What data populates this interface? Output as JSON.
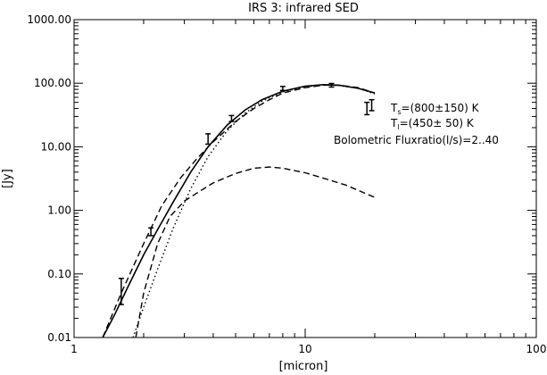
{
  "chart_data": {
    "type": "line",
    "title": "IRS 3: infrared SED",
    "xlabel": "[micron]",
    "ylabel": "[Jy]",
    "xscale": "log",
    "yscale": "log",
    "xlim": [
      1,
      100
    ],
    "ylim": [
      0.01,
      1000
    ],
    "grid": false,
    "x_ticks": [
      {
        "value": 1,
        "label": "1"
      },
      {
        "value": 10,
        "label": "10"
      },
      {
        "value": 100,
        "label": "100"
      }
    ],
    "y_ticks": [
      {
        "value": 0.01,
        "label": "0.01"
      },
      {
        "value": 0.1,
        "label": "0.10"
      },
      {
        "value": 1,
        "label": "1.00"
      },
      {
        "value": 10,
        "label": "10.00"
      },
      {
        "value": 100,
        "label": "100.00"
      },
      {
        "value": 1000,
        "label": "1000.00"
      }
    ],
    "annotations": [
      {
        "text": "T",
        "sub": "s",
        "rest": "=(800±150) K"
      },
      {
        "text": "T",
        "sub": "l",
        "rest": "=(450± 50) K"
      },
      {
        "text": "Bolometric Fluxratio(l/s)=2..40",
        "sub": "",
        "rest": ""
      }
    ],
    "series": [
      {
        "style": "solid",
        "x": [
          1.33,
          1.5,
          1.7,
          2.0,
          2.3,
          2.7,
          3.2,
          3.8,
          4.6,
          5.5,
          6.5,
          8,
          10,
          12,
          14,
          17,
          20
        ],
        "y": [
          0.01,
          0.023,
          0.06,
          0.2,
          0.5,
          1.4,
          4.0,
          10.0,
          22.0,
          38.0,
          55.0,
          75.0,
          90.0,
          95.0,
          93.0,
          83.0,
          70.0
        ]
      },
      {
        "style": "dotted",
        "x": [
          1.8,
          2.0,
          2.3,
          2.7,
          3.2,
          3.8,
          4.6,
          5.5,
          6.5,
          8,
          10,
          12,
          14,
          17,
          20
        ],
        "y": [
          0.01,
          0.03,
          0.12,
          0.55,
          2.2,
          7.0,
          18.0,
          34.0,
          52.0,
          73.0,
          88.0,
          94.0,
          92.0,
          83.0,
          68.0
        ]
      },
      {
        "style": "dashed",
        "x": [
          1.33,
          1.6,
          2.0,
          2.4,
          2.9,
          3.4,
          4.0,
          5.0,
          6.0,
          7.0,
          8.0,
          10,
          12,
          14,
          17,
          20
        ],
        "y": [
          0.01,
          0.05,
          0.3,
          1.2,
          3.3,
          6.5,
          12.0,
          25.0,
          40.0,
          55.0,
          70.0,
          85.0,
          93.0,
          93.0,
          85.0,
          70.0
        ]
      },
      {
        "style": "dashed",
        "x": [
          1.85,
          2.0,
          2.3,
          2.6,
          3.0,
          3.5,
          4.0,
          5.0,
          6.0,
          7.0,
          8.0,
          10,
          12,
          15,
          20
        ],
        "y": [
          0.01,
          0.05,
          0.3,
          0.8,
          1.4,
          2.0,
          2.7,
          3.8,
          4.6,
          4.8,
          4.6,
          3.9,
          3.2,
          2.5,
          1.6
        ]
      }
    ],
    "error_bars": [
      {
        "x": 1.6,
        "y": 0.055,
        "low": 0.033,
        "high": 0.085
      },
      {
        "x": 2.15,
        "y": 0.46,
        "low": 0.4,
        "high": 0.53
      },
      {
        "x": 3.8,
        "y": 13.5,
        "low": 11.0,
        "high": 16.0
      },
      {
        "x": 4.8,
        "y": 28.0,
        "low": 25.0,
        "high": 31.0
      },
      {
        "x": 8.0,
        "y": 83.0,
        "low": 77.0,
        "high": 89.0
      },
      {
        "x": 13.0,
        "y": 93.0,
        "low": 87.0,
        "high": 99.0
      },
      {
        "x": 18.5,
        "y": 40.0,
        "low": 32.0,
        "high": 50.0
      },
      {
        "x": 19.4,
        "y": 45.0,
        "low": 37.0,
        "high": 55.0
      }
    ]
  }
}
